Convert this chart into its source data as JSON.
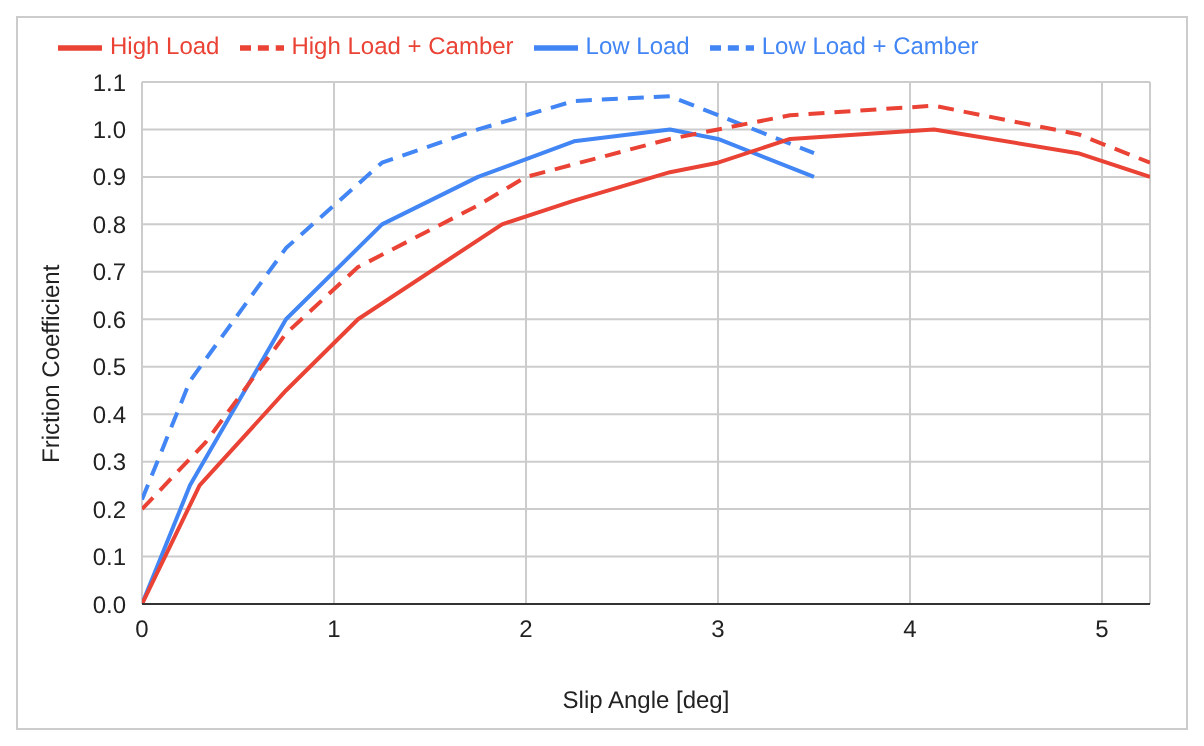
{
  "chart_data": {
    "type": "line",
    "xlabel": "Slip Angle [deg]",
    "ylabel": "Friction Coefficient",
    "xlim": [
      0,
      5.25
    ],
    "xticks": [
      0,
      1,
      2,
      3,
      4,
      5
    ],
    "ylim": [
      0,
      1.1
    ],
    "yticks": [
      {
        "value": 0,
        "label": "0.0"
      },
      0.1,
      0.2,
      0.3,
      0.4,
      0.5,
      0.6,
      0.7,
      0.8,
      0.9,
      {
        "value": 1,
        "label": "1.0"
      },
      1.1
    ],
    "grid": true,
    "legend": "top left",
    "marker": "none",
    "series": [
      {
        "name": "Low Load",
        "color": "#4285f4",
        "line_style": "solid",
        "x": [
          0,
          0.25,
          0.75,
          1.25,
          1.75,
          2.25,
          2.75,
          3,
          3.5
        ],
        "values": [
          0,
          0.25,
          0.6,
          0.8,
          0.9,
          0.975,
          1,
          0.98,
          0.9
        ]
      },
      {
        "name": "Low Load + Camber",
        "color": "#4285f4",
        "line_style": "dashed",
        "x": [
          0,
          0.25,
          0.75,
          1.25,
          1.75,
          2.25,
          2.75,
          3,
          3.5
        ],
        "values": [
          0.22,
          0.47,
          0.75,
          0.93,
          1,
          1.06,
          1.07,
          1.03,
          0.95
        ]
      },
      {
        "name": "High Load",
        "color": "#ea4335",
        "line_style": "solid",
        "x": [
          0,
          0.3,
          0.75,
          1.125,
          1.875,
          2.25,
          2.75,
          3,
          3.375,
          4.125,
          4.875,
          5.25
        ],
        "values": [
          0,
          0.25,
          0.45,
          0.6,
          0.8,
          0.85,
          0.91,
          0.93,
          0.98,
          1,
          0.95,
          0.9
        ]
      },
      {
        "name": "High Load + Camber",
        "color": "#ea4335",
        "line_style": "dashed",
        "x": [
          0,
          0.33,
          0.75,
          1.125,
          1.75,
          2,
          2.75,
          3.375,
          4.125,
          4.875,
          5.25
        ],
        "values": [
          0.2,
          0.34,
          0.57,
          0.71,
          0.84,
          0.9,
          0.98,
          1.03,
          1.05,
          0.99,
          0.93
        ]
      }
    ]
  }
}
